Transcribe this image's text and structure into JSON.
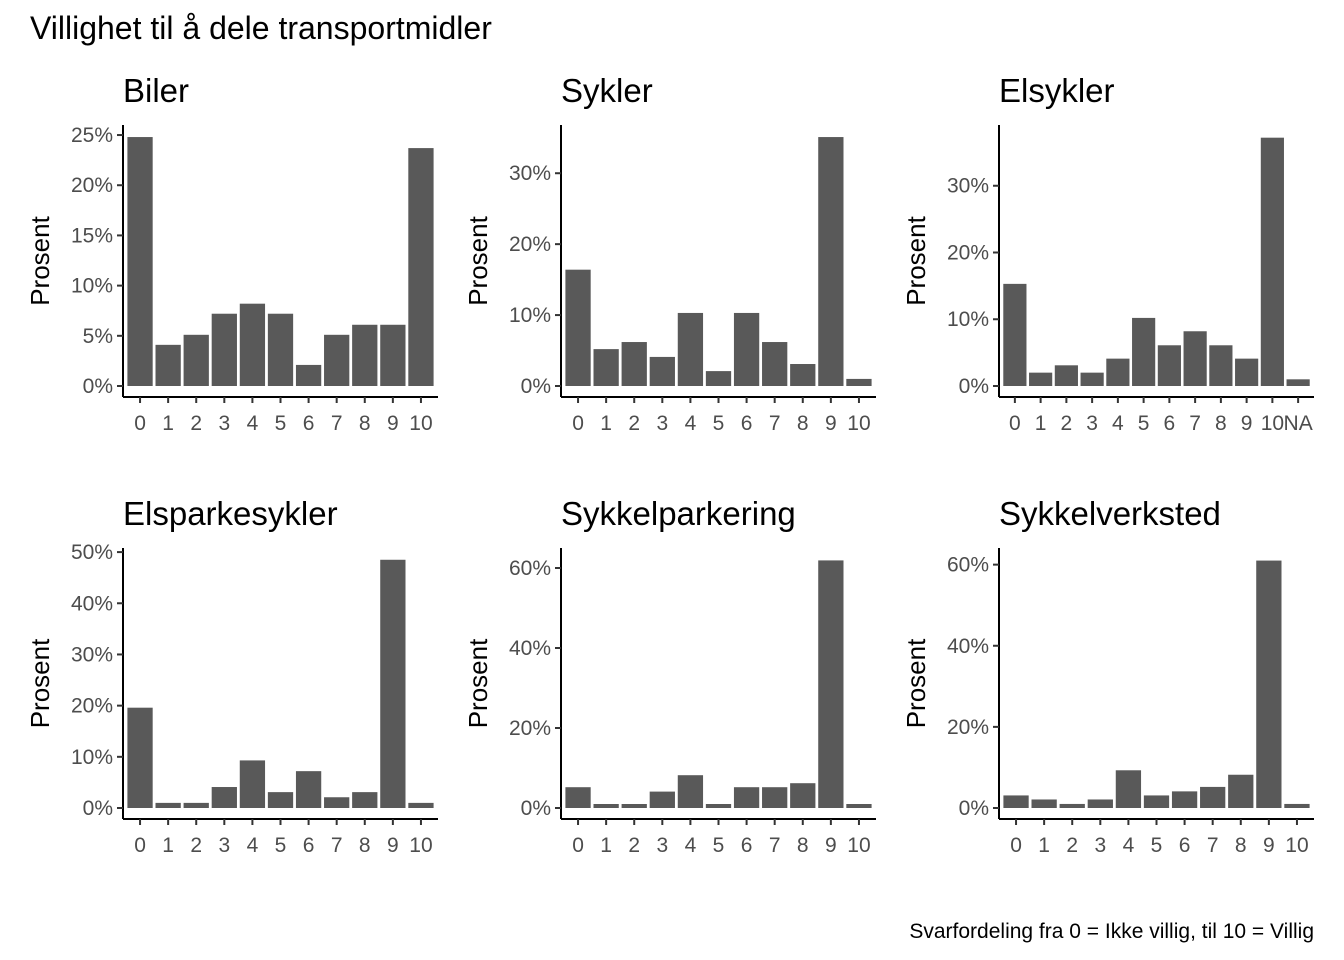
{
  "title": "Villighet til å dele transportmidler",
  "caption": "Svarfordeling fra 0 = Ikke villig, til 10 = Villig",
  "colors": {
    "bar": "#595959",
    "background": "#ffffff"
  },
  "chart_data": [
    {
      "type": "bar",
      "title": "Biler",
      "ylabel": "Prosent",
      "xlabel": "",
      "categories": [
        "0",
        "1",
        "2",
        "3",
        "4",
        "5",
        "6",
        "7",
        "8",
        "9",
        "10"
      ],
      "values": [
        24.8,
        4.1,
        5.1,
        7.2,
        8.2,
        7.2,
        2.1,
        5.1,
        6.1,
        6.1,
        23.7
      ],
      "ylim": [
        0,
        26
      ],
      "yticks": [
        0,
        5,
        10,
        15,
        20,
        25
      ],
      "ytick_labels": [
        "0%",
        "5%",
        "10%",
        "15%",
        "20%",
        "25%"
      ],
      "grid": false
    },
    {
      "type": "bar",
      "title": "Sykler",
      "ylabel": "Prosent",
      "xlabel": "",
      "categories": [
        "0",
        "1",
        "2",
        "3",
        "4",
        "5",
        "6",
        "7",
        "8",
        "9",
        "10"
      ],
      "values": [
        16.4,
        5.2,
        6.2,
        4.1,
        10.3,
        2.1,
        10.3,
        6.2,
        3.1,
        35.1,
        1.0
      ],
      "ylim": [
        0,
        36.8
      ],
      "yticks": [
        0,
        10,
        20,
        30
      ],
      "ytick_labels": [
        "0%",
        "10%",
        "20%",
        "30%"
      ],
      "grid": false
    },
    {
      "type": "bar",
      "title": "Elsykler",
      "ylabel": "Prosent",
      "xlabel": "",
      "categories": [
        "0",
        "1",
        "2",
        "3",
        "4",
        "5",
        "6",
        "7",
        "8",
        "9",
        "10",
        "NA"
      ],
      "values": [
        15.3,
        2.0,
        3.1,
        2.0,
        4.1,
        10.2,
        6.1,
        8.2,
        6.1,
        4.1,
        37.2,
        1.0
      ],
      "ylim": [
        0,
        39.1
      ],
      "yticks": [
        0,
        10,
        20,
        30
      ],
      "ytick_labels": [
        "0%",
        "10%",
        "20%",
        "30%"
      ],
      "grid": false
    },
    {
      "type": "bar",
      "title": "Elsparkesykler",
      "ylabel": "Prosent",
      "xlabel": "",
      "categories": [
        "0",
        "1",
        "2",
        "3",
        "4",
        "5",
        "6",
        "7",
        "8",
        "9",
        "10"
      ],
      "values": [
        19.6,
        1.0,
        1.0,
        4.1,
        9.3,
        3.1,
        7.2,
        2.1,
        3.1,
        48.5,
        1.0
      ],
      "ylim": [
        0,
        50.8
      ],
      "yticks": [
        0,
        10,
        20,
        30,
        40,
        50
      ],
      "ytick_labels": [
        "0%",
        "10%",
        "20%",
        "30%",
        "40%",
        "50%"
      ],
      "grid": false
    },
    {
      "type": "bar",
      "title": "Sykkelparkering",
      "ylabel": "Prosent",
      "xlabel": "",
      "categories": [
        "0",
        "1",
        "2",
        "3",
        "4",
        "5",
        "6",
        "7",
        "8",
        "9",
        "10"
      ],
      "values": [
        5.2,
        1.0,
        1.0,
        4.1,
        8.2,
        1.0,
        5.2,
        5.2,
        6.2,
        61.9,
        1.0
      ],
      "ylim": [
        0,
        65
      ],
      "yticks": [
        0,
        20,
        40,
        60
      ],
      "ytick_labels": [
        "0%",
        "20%",
        "40%",
        "60%"
      ],
      "grid": false
    },
    {
      "type": "bar",
      "title": "Sykkelverksted",
      "ylabel": "Prosent",
      "xlabel": "",
      "categories": [
        "0",
        "1",
        "2",
        "3",
        "4",
        "5",
        "6",
        "7",
        "8",
        "9",
        "10"
      ],
      "values": [
        3.1,
        2.1,
        1.0,
        2.1,
        9.3,
        3.1,
        4.1,
        5.2,
        8.2,
        61.0,
        1.0
      ],
      "ylim": [
        0,
        64.1
      ],
      "yticks": [
        0,
        20,
        40,
        60
      ],
      "ytick_labels": [
        "0%",
        "20%",
        "40%",
        "60%"
      ],
      "grid": false
    }
  ]
}
